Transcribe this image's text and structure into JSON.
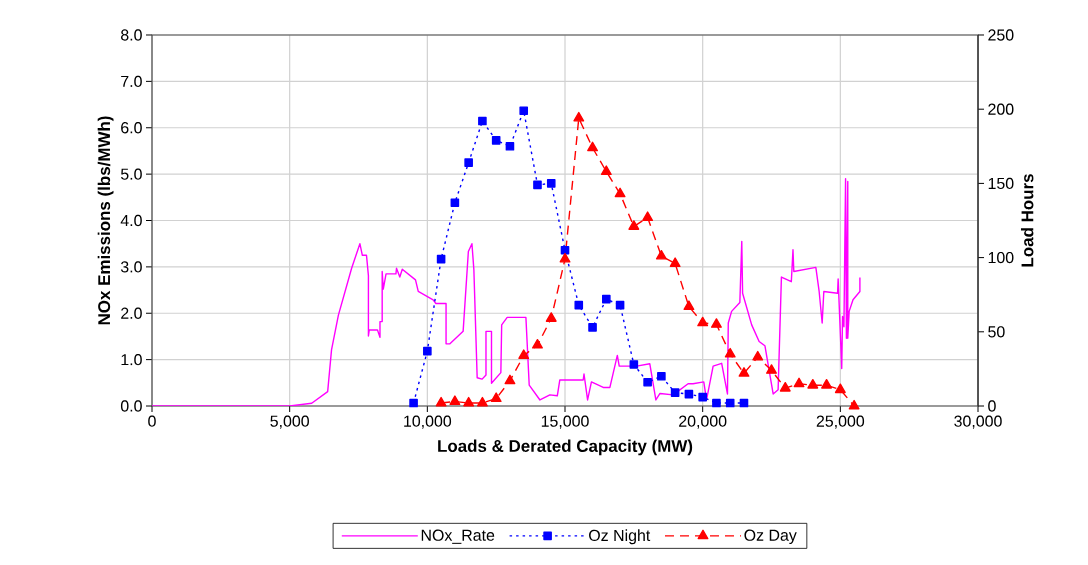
{
  "chart_data": {
    "type": "line",
    "xlabel": "Loads & Derated Capacity (MW)",
    "ylabel": "NOx Emissions (lbs/MWh)",
    "y2label": "Load Hours",
    "xlim": [
      0,
      30000
    ],
    "xticks": [
      0,
      {
        "value": 5000,
        "label": "5,000"
      },
      {
        "value": 10000,
        "label": "10,000"
      },
      {
        "value": 15000,
        "label": "15,000"
      },
      {
        "value": 20000,
        "label": "20,000"
      },
      {
        "value": 25000,
        "label": "25,000"
      },
      {
        "value": 30000,
        "label": "30,000"
      }
    ],
    "ylim": [
      0,
      8
    ],
    "yticks": [
      {
        "value": 0,
        "label": "0.0"
      },
      {
        "value": 1,
        "label": "1.0"
      },
      {
        "value": 2,
        "label": "2.0"
      },
      {
        "value": 3,
        "label": "3.0"
      },
      {
        "value": 4,
        "label": "4.0"
      },
      {
        "value": 5,
        "label": "5.0"
      },
      {
        "value": 6,
        "label": "6.0"
      },
      {
        "value": 7,
        "label": "7.0"
      },
      {
        "value": 8,
        "label": "8.0"
      }
    ],
    "y2lim": [
      0,
      250
    ],
    "y2ticks": [
      0,
      50,
      100,
      150,
      200,
      250
    ],
    "grid": true,
    "legend": "bottom",
    "series": [
      {
        "name": "NOx_Rate",
        "color": "#ff00ff",
        "marker": "none",
        "line_style": "solid",
        "x": [
          0,
          5000,
          5800,
          6380,
          6520,
          6770,
          7250,
          7550,
          7640,
          7790,
          7860,
          7860,
          7890,
          8190,
          8280,
          8280,
          8360,
          8360,
          8400,
          8500,
          8860,
          8880,
          9000,
          9090,
          9570,
          9670,
          10210,
          10310,
          10680,
          10680,
          10820,
          11300,
          11490,
          11620,
          11690,
          11810,
          11990,
          12130,
          12130,
          12330,
          12330,
          12670,
          12700,
          12900,
          13580,
          13700,
          14090,
          14450,
          14720,
          14810,
          15660,
          15690,
          15820,
          15960,
          16390,
          16630,
          16900,
          16970,
          17600,
          18080,
          18300,
          18450,
          18930,
          19470,
          19650,
          20040,
          20140,
          20380,
          20690,
          20900,
          20930,
          21050,
          21350,
          21420,
          21450,
          21780,
          22050,
          22260,
          22560,
          22740,
          22860,
          23220,
          23280,
          23310,
          24110,
          24230,
          24340,
          24400,
          24900,
          24920,
          24980,
          25050,
          25080,
          25130,
          25190,
          25220,
          25270,
          25270,
          25320,
          25460,
          25710,
          25710
        ],
        "values": [
          0,
          0,
          0.06,
          0.31,
          1.21,
          1.96,
          2.97,
          3.5,
          3.25,
          3.25,
          2.81,
          1.51,
          1.64,
          1.64,
          1.48,
          1.82,
          1.82,
          2.9,
          2.52,
          2.85,
          2.85,
          2.97,
          2.78,
          2.95,
          2.72,
          2.47,
          2.29,
          2.21,
          2.21,
          1.34,
          1.34,
          1.61,
          3.33,
          3.5,
          2.94,
          0.61,
          0.58,
          0.67,
          1.61,
          1.61,
          0.49,
          0.72,
          1.75,
          1.91,
          1.91,
          0.45,
          0.13,
          0.24,
          0.22,
          0.56,
          0.56,
          0.69,
          0.13,
          0.52,
          0.4,
          0.4,
          1.09,
          0.86,
          0.86,
          0.91,
          0.13,
          0.27,
          0.24,
          0.48,
          0.48,
          0.52,
          0.13,
          0.86,
          0.92,
          0.26,
          1.79,
          2.04,
          2.23,
          3.55,
          2.43,
          1.75,
          1.39,
          1.3,
          0.26,
          0.35,
          2.78,
          2.68,
          3.37,
          2.9,
          2.99,
          2.47,
          1.79,
          2.47,
          2.43,
          2.74,
          1.86,
          0.81,
          1.93,
          1.71,
          4.9,
          1.46,
          4.84,
          1.46,
          2.04,
          2.29,
          2.47,
          2.77
        ]
      },
      {
        "name": "Oz Night",
        "color": "#0000ff",
        "marker": "square",
        "line_style": "dotted",
        "axis": "y2",
        "x": [
          9500,
          10000,
          10500,
          11000,
          11500,
          12000,
          12500,
          13000,
          13500,
          14000,
          14500,
          15000,
          15500,
          16000,
          16500,
          17000,
          17500,
          18000,
          18500,
          19000,
          19500,
          20000,
          20500,
          21000,
          21500
        ],
        "values": [
          2,
          37,
          99,
          137,
          164,
          192,
          179,
          175,
          199,
          149,
          150,
          105,
          68,
          53,
          72,
          68,
          28,
          16,
          20,
          9,
          8,
          6,
          2,
          2,
          2
        ]
      },
      {
        "name": "Oz Day",
        "color": "#ff0000",
        "marker": "triangle",
        "line_style": "dashed",
        "axis": "y2",
        "x": [
          10500,
          11000,
          11500,
          12000,
          12500,
          13000,
          13500,
          14000,
          14500,
          15000,
          15500,
          16000,
          16500,
          17000,
          17500,
          18000,
          18500,
          19000,
          19500,
          20000,
          20500,
          21000,
          21500,
          22000,
          22500,
          23000,
          23500,
          24000,
          24500,
          25000,
          25500
        ],
        "values": [
          2,
          3,
          2,
          2,
          5,
          17,
          34,
          41,
          59,
          99,
          194,
          174,
          158,
          143,
          121,
          127,
          101,
          96,
          67,
          56,
          55,
          35,
          22,
          33,
          24,
          12,
          15,
          14,
          14,
          11,
          0
        ]
      }
    ]
  }
}
